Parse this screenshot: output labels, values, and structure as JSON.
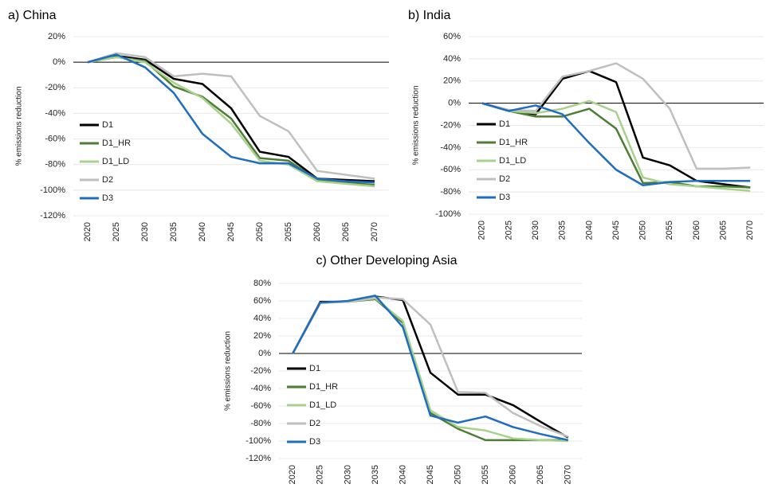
{
  "chart_data": [
    {
      "type": "line",
      "title": "a) China",
      "y_label": "% emissions reduction",
      "categories": [
        "2020",
        "2025",
        "2030",
        "2035",
        "2040",
        "2045",
        "2050",
        "2055",
        "2060",
        "2065",
        "2070"
      ],
      "ylim": [
        -120,
        20
      ],
      "yticks": [
        {
          "value": 20,
          "label": "20%"
        },
        {
          "value": 0,
          "label": "0%"
        },
        {
          "value": -20,
          "label": "-20%"
        },
        {
          "value": -40,
          "label": "-40%"
        },
        {
          "value": -60,
          "label": "-60%"
        },
        {
          "value": -80,
          "label": "-80%"
        },
        {
          "value": -100,
          "label": "-100%"
        },
        {
          "value": -120,
          "label": "-120%"
        }
      ],
      "grid": true,
      "legend": "left",
      "series": [
        {
          "name": "D1",
          "color": "#000000",
          "values": [
            0,
            5,
            2,
            -13,
            -17,
            -36,
            -70,
            -74,
            -91,
            -92,
            -93
          ]
        },
        {
          "name": "D1_HR",
          "color": "#4e7d35",
          "values": [
            0,
            4,
            1,
            -19,
            -27,
            -44,
            -75,
            -77,
            -92,
            -94,
            -96
          ]
        },
        {
          "name": "D1_LD",
          "color": "#a9d18e",
          "values": [
            0,
            4,
            0,
            -16,
            -28,
            -48,
            -77,
            -80,
            -93,
            -95,
            -97
          ]
        },
        {
          "name": "D2",
          "color": "#bfbfbf",
          "values": [
            0,
            7,
            4,
            -11,
            -9,
            -11,
            -42,
            -54,
            -85,
            -88,
            -91
          ]
        },
        {
          "name": "D3",
          "color": "#1f6dbf",
          "values": [
            0,
            6,
            -4,
            -24,
            -56,
            -74,
            -79,
            -79,
            -91,
            -93,
            -94
          ]
        }
      ]
    },
    {
      "type": "line",
      "title": "b) India",
      "y_label": "% emissions reduction",
      "categories": [
        "2020",
        "2025",
        "2030",
        "2035",
        "2040",
        "2045",
        "2050",
        "2055",
        "2060",
        "2065",
        "2070"
      ],
      "ylim": [
        -100,
        60
      ],
      "yticks": [
        {
          "value": 60,
          "label": "60%"
        },
        {
          "value": 40,
          "label": "40%"
        },
        {
          "value": 20,
          "label": "20%"
        },
        {
          "value": 0,
          "label": "0%"
        },
        {
          "value": -20,
          "label": "-20%"
        },
        {
          "value": -40,
          "label": "-40%"
        },
        {
          "value": -60,
          "label": "-60%"
        },
        {
          "value": -80,
          "label": "-80%"
        },
        {
          "value": -100,
          "label": "-100%"
        }
      ],
      "grid": true,
      "legend": "left",
      "series": [
        {
          "name": "D1",
          "color": "#000000",
          "values": [
            0,
            -7,
            -10,
            22,
            29,
            19,
            -49,
            -56,
            -70,
            -73,
            -76
          ]
        },
        {
          "name": "D1_HR",
          "color": "#4e7d35",
          "values": [
            0,
            -7,
            -12,
            -12,
            -5,
            -23,
            -72,
            -71,
            -75,
            -75,
            -76
          ]
        },
        {
          "name": "D1_LD",
          "color": "#a9d18e",
          "values": [
            0,
            -7,
            -9,
            -5,
            2,
            -8,
            -67,
            -73,
            -75,
            -77,
            -79
          ]
        },
        {
          "name": "D2",
          "color": "#bfbfbf",
          "values": [
            0,
            -6,
            -7,
            24,
            29,
            36,
            22,
            -5,
            -59,
            -59,
            -58
          ]
        },
        {
          "name": "D3",
          "color": "#1f6dbf",
          "values": [
            0,
            -7,
            -2,
            -10,
            -36,
            -60,
            -74,
            -71,
            -70,
            -70,
            -70
          ]
        }
      ]
    },
    {
      "type": "line",
      "title": "c) Other Developing Asia",
      "y_label": "% emissions reduction",
      "categories": [
        "2020",
        "2025",
        "2030",
        "2035",
        "2040",
        "2045",
        "2050",
        "2055",
        "2060",
        "2065",
        "2070"
      ],
      "ylim": [
        -120,
        80
      ],
      "yticks": [
        {
          "value": 80,
          "label": "80%"
        },
        {
          "value": 60,
          "label": "60%"
        },
        {
          "value": 40,
          "label": "40%"
        },
        {
          "value": 20,
          "label": "20%"
        },
        {
          "value": 0,
          "label": "0%"
        },
        {
          "value": -20,
          "label": "-20%"
        },
        {
          "value": -40,
          "label": "-40%"
        },
        {
          "value": -60,
          "label": "-60%"
        },
        {
          "value": -80,
          "label": "-80%"
        },
        {
          "value": -100,
          "label": "-100%"
        },
        {
          "value": -120,
          "label": "-120%"
        }
      ],
      "grid": true,
      "legend": "left",
      "series": [
        {
          "name": "D1",
          "color": "#000000",
          "values": [
            0,
            59,
            59,
            65,
            61,
            -22,
            -47,
            -47,
            -59,
            -78,
            -96
          ]
        },
        {
          "name": "D1_HR",
          "color": "#4e7d35",
          "values": [
            0,
            58,
            59,
            62,
            35,
            -68,
            -86,
            -99,
            -99,
            -99,
            -99
          ]
        },
        {
          "name": "D1_LD",
          "color": "#a9d18e",
          "values": [
            0,
            58,
            59,
            63,
            37,
            -65,
            -84,
            -88,
            -97,
            -99,
            -100
          ]
        },
        {
          "name": "D2",
          "color": "#bfbfbf",
          "values": [
            0,
            58,
            59,
            64,
            62,
            33,
            -44,
            -45,
            -68,
            -83,
            -95
          ]
        },
        {
          "name": "D3",
          "color": "#1f6dbf",
          "values": [
            0,
            58,
            60,
            66,
            30,
            -71,
            -79,
            -72,
            -84,
            -92,
            -99
          ]
        }
      ]
    }
  ]
}
